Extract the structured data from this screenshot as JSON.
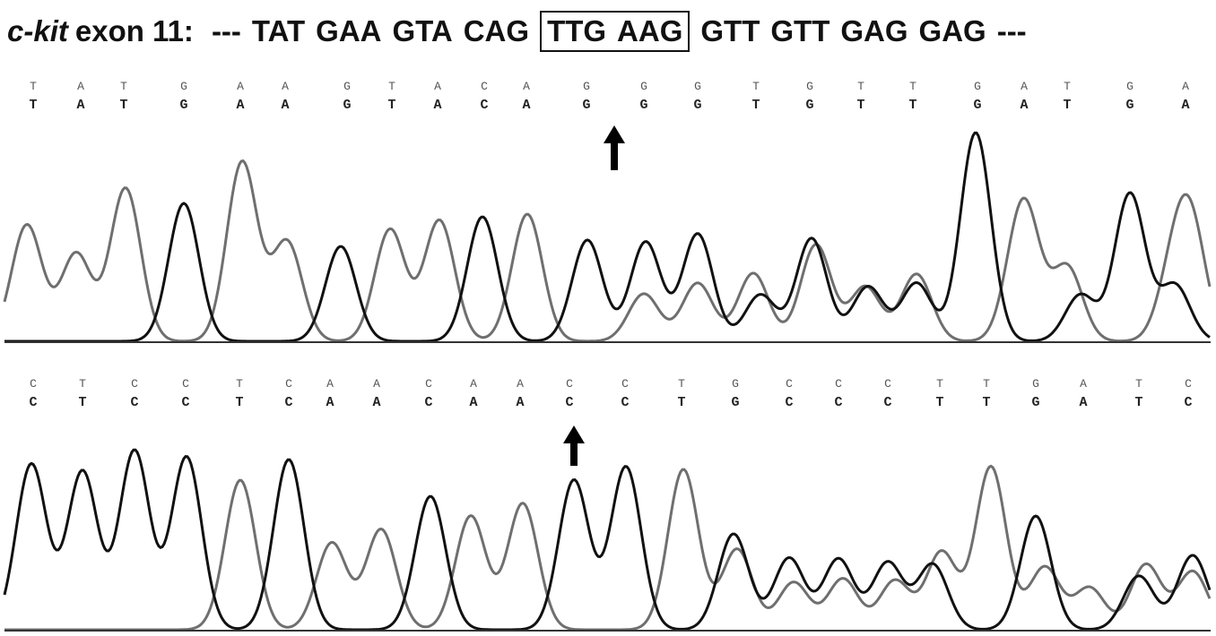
{
  "title": {
    "gene": "c-kit",
    "exon": "exon 11:",
    "codons": [
      "---",
      "TAT",
      "GAA",
      "GTA",
      "CAG",
      "TTG",
      "AAG",
      "GTT",
      "GTT",
      "GAG",
      "GAG",
      "---"
    ]
  },
  "panels": [
    {
      "calls_top": [
        "T",
        "A",
        "T",
        "G",
        "A",
        "A",
        "G",
        "T",
        "A",
        "C",
        "A",
        "G",
        "G",
        "G",
        "T",
        "G",
        "T",
        "T",
        "G",
        "A",
        "T",
        "G",
        "A"
      ],
      "calls_bottom": [
        "T",
        "A",
        "T",
        "G",
        "A",
        "A",
        "G",
        "T",
        "A",
        "C",
        "A",
        "G",
        "G",
        "G",
        "T",
        "G",
        "T",
        "T",
        "G",
        "A",
        "T",
        "G",
        "A"
      ]
    },
    {
      "calls_top": [
        "C",
        "T",
        "C",
        "C",
        "T",
        "C",
        "A",
        "A",
        "C",
        "A",
        "A",
        "C",
        "C",
        "T",
        "G",
        "C",
        "C",
        "C",
        "T",
        "T",
        "G",
        "A",
        "T",
        "C"
      ],
      "calls_bottom": [
        "C",
        "T",
        "C",
        "C",
        "T",
        "C",
        "A",
        "A",
        "C",
        "A",
        "A",
        "C",
        "C",
        "T",
        "G",
        "C",
        "C",
        "C",
        "T",
        "T",
        "G",
        "A",
        "T",
        "C"
      ]
    }
  ]
}
